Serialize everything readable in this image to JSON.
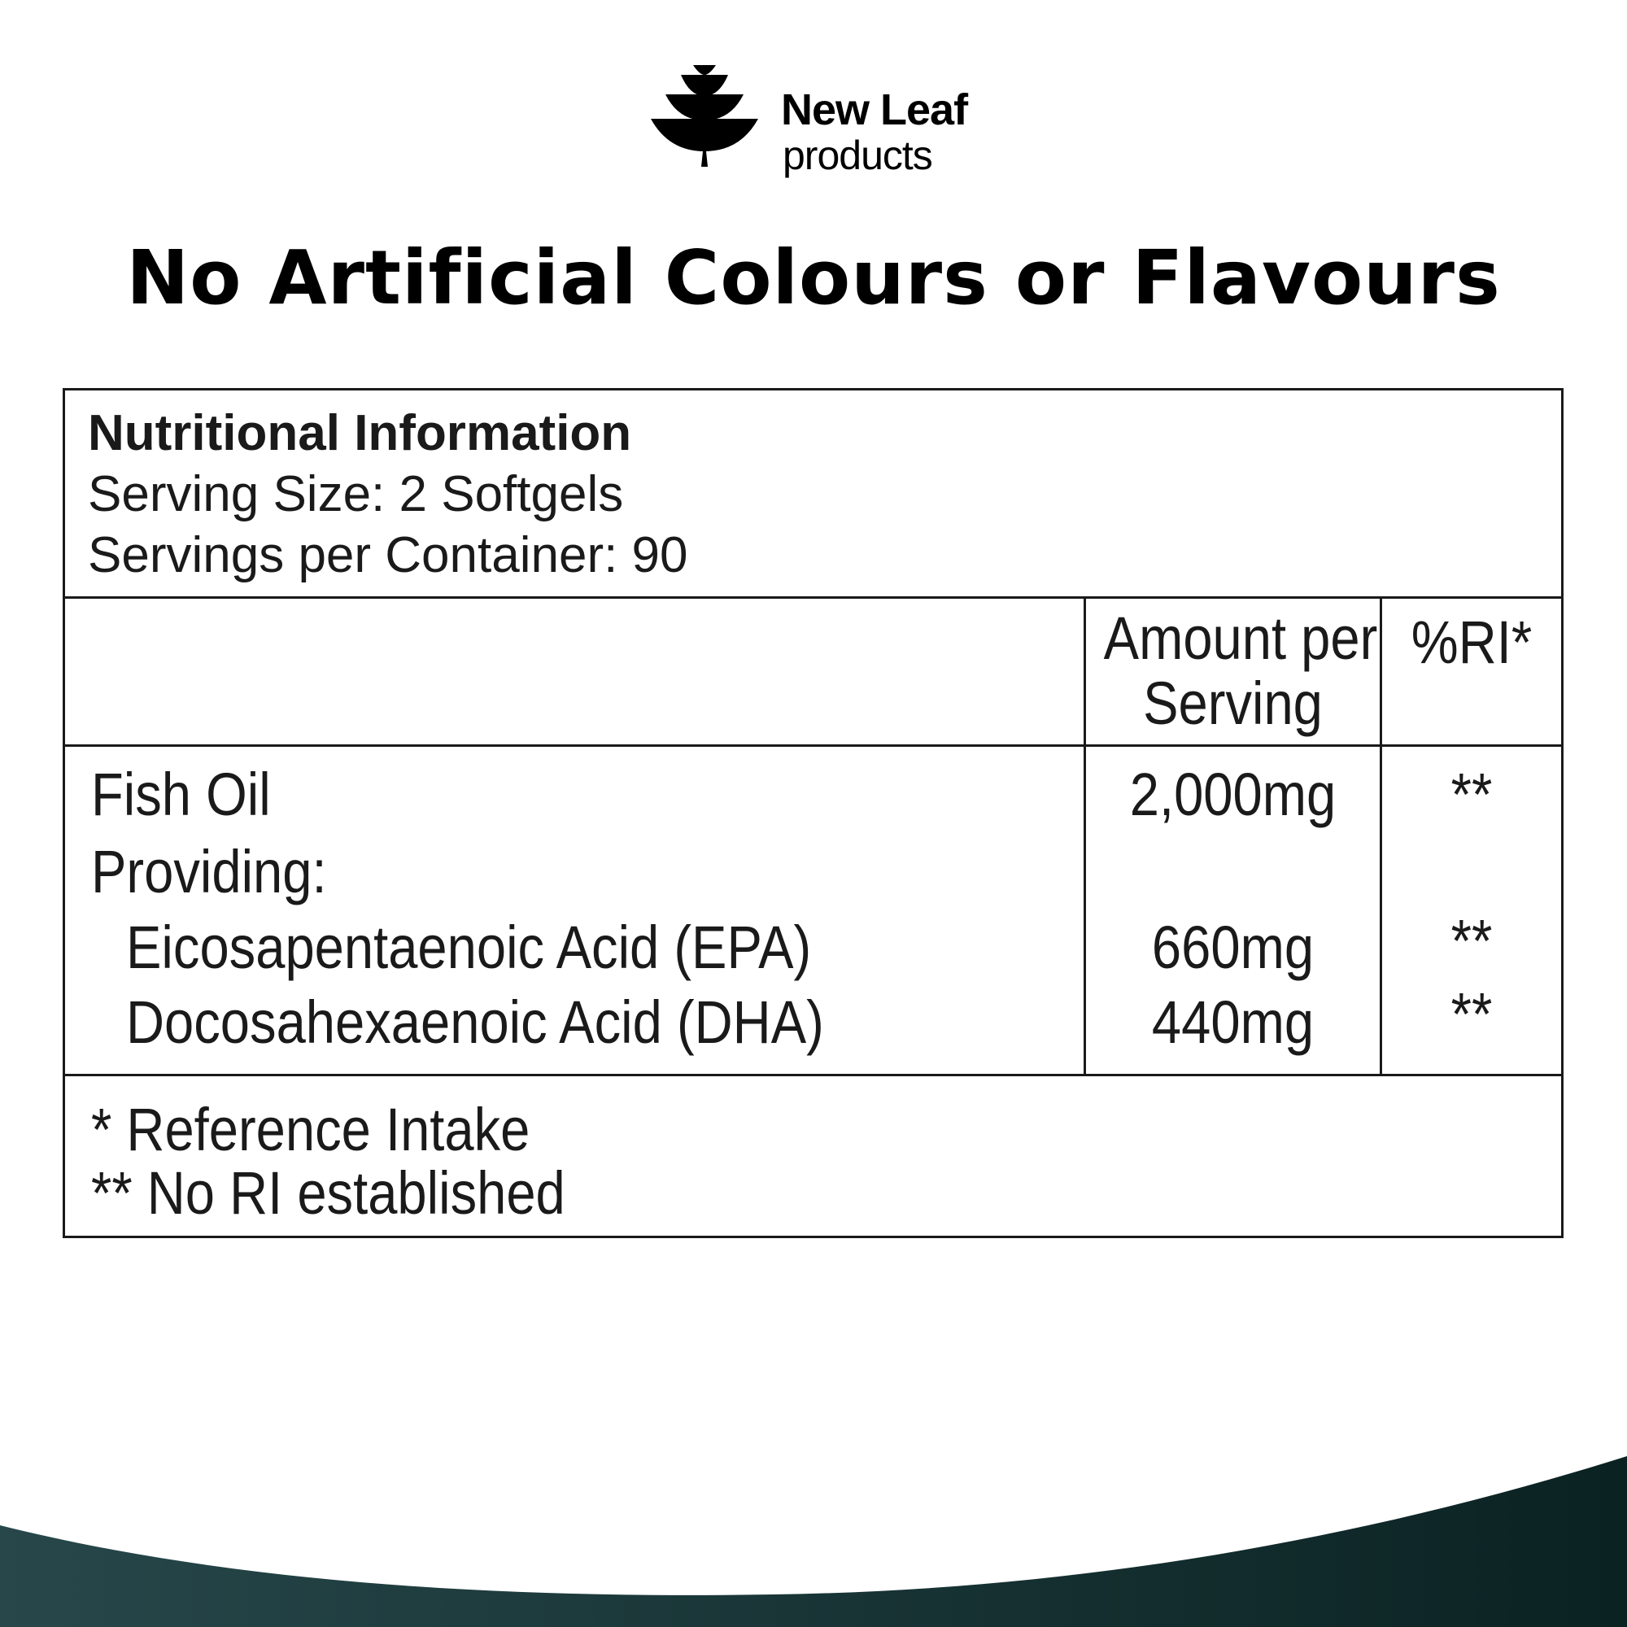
{
  "brand": {
    "name": "New Leaf",
    "sub": "products"
  },
  "headline": "No Artificial Colours or Flavours",
  "panel": {
    "title": "Nutritional Information",
    "serving_size": "Serving Size: 2 Softgels",
    "servings_per_container": "Servings per Container: 90",
    "columns": {
      "amount_line1": "Amount per",
      "amount_line2": "Serving",
      "ri": "%RI*"
    },
    "rows": [
      {
        "name": "Fish Oil",
        "amount": "2,000mg",
        "ri": "**"
      },
      {
        "name": "Providing:",
        "amount": "",
        "ri": ""
      },
      {
        "name": "Eicosapentaenoic Acid (EPA)",
        "amount": "660mg",
        "ri": "**"
      },
      {
        "name": "Docosahexaenoic Acid (DHA)",
        "amount": "440mg",
        "ri": "**"
      }
    ],
    "footnotes": [
      "* Reference Intake",
      "** No RI established"
    ]
  },
  "colors": {
    "wave_left": "#27474a",
    "wave_right": "#0b2222",
    "ink": "#1a1a1a"
  }
}
